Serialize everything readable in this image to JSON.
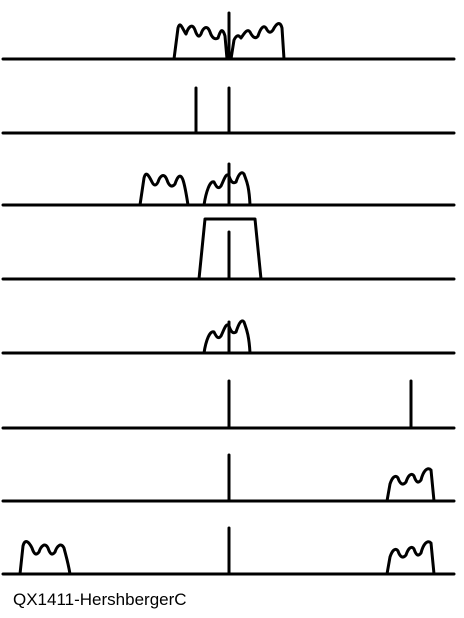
{
  "caption": "QX1411-HershbergerC",
  "style": {
    "ink": "#000000",
    "background": "#ffffff"
  },
  "panels": [
    {
      "label": "",
      "elements": [
        "two spectrum humps either side of centre line"
      ]
    },
    {
      "label": "",
      "elements": [
        "two spikes near centre"
      ]
    },
    {
      "label": "",
      "elements": [
        "two spectrum humps, one straddling centre"
      ]
    },
    {
      "label": "",
      "elements": [
        "flat-top passband around centre"
      ]
    },
    {
      "label": "",
      "elements": [
        "single hump at centre"
      ]
    },
    {
      "label": "",
      "elements": [
        "centre spike and far-right spike"
      ]
    },
    {
      "label": "",
      "elements": [
        "centre spike and hump at right"
      ]
    },
    {
      "label": "",
      "elements": [
        "hump at left, centre spike, hump at right"
      ]
    }
  ]
}
